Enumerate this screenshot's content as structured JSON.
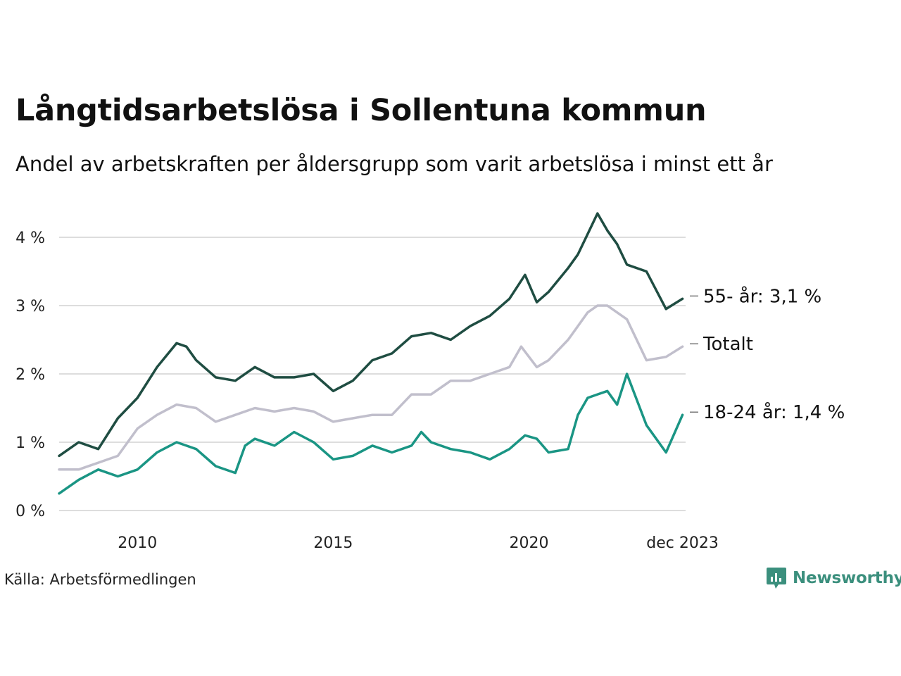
{
  "title": "Långtidsarbetslösa i Sollentuna kommun",
  "subtitle": "Andel av arbetskraften per åldersgrupp som varit arbetslösa i minst ett år",
  "source": "Källa: Arbetsförmedlingen",
  "brand": {
    "name": "Newsworthy",
    "icon": "newsworthy-logo-icon",
    "color": "#3b8f7d"
  },
  "chart_data": {
    "type": "line",
    "title": "Långtidsarbetslösa i Sollentuna kommun",
    "xlabel": "",
    "ylabel": "",
    "xlim": [
      2008.0,
      2024.0
    ],
    "ylim": [
      0,
      4.4
    ],
    "grid": true,
    "y_ticks": [
      0,
      1,
      2,
      3,
      4
    ],
    "y_tick_labels": [
      "0 %",
      "1 %",
      "2 %",
      "3 %",
      "4 %"
    ],
    "x_ticks": [
      2010,
      2015,
      2020,
      2023.92
    ],
    "x_tick_labels": [
      "2010",
      "2015",
      "2020",
      "dec 2023"
    ],
    "series": [
      {
        "name": "55- år",
        "label": "55- år: 3,1 %",
        "color": "#1f4d42",
        "x": [
          2008.0,
          2008.5,
          2009.0,
          2009.5,
          2010.0,
          2010.5,
          2011.0,
          2011.25,
          2011.5,
          2012.0,
          2012.5,
          2013.0,
          2013.5,
          2014.0,
          2014.5,
          2015.0,
          2015.5,
          2016.0,
          2016.5,
          2017.0,
          2017.5,
          2018.0,
          2018.5,
          2019.0,
          2019.5,
          2019.9,
          2020.2,
          2020.5,
          2021.0,
          2021.25,
          2021.5,
          2021.75,
          2022.0,
          2022.25,
          2022.5,
          2023.0,
          2023.5,
          2023.92
        ],
        "values": [
          0.8,
          1.0,
          0.9,
          1.35,
          1.65,
          2.1,
          2.45,
          2.4,
          2.2,
          1.95,
          1.9,
          2.1,
          1.95,
          1.95,
          2.0,
          1.75,
          1.9,
          2.2,
          2.3,
          2.55,
          2.6,
          2.5,
          2.7,
          2.85,
          3.1,
          3.45,
          3.05,
          3.2,
          3.55,
          3.75,
          4.05,
          4.35,
          4.1,
          3.9,
          3.6,
          3.5,
          2.95,
          3.1
        ]
      },
      {
        "name": "Totalt",
        "label": "Totalt",
        "color": "#c1bfcc",
        "x": [
          2008.0,
          2008.5,
          2009.0,
          2009.5,
          2010.0,
          2010.5,
          2011.0,
          2011.5,
          2012.0,
          2012.5,
          2013.0,
          2013.5,
          2014.0,
          2014.5,
          2015.0,
          2015.5,
          2016.0,
          2016.5,
          2017.0,
          2017.5,
          2018.0,
          2018.5,
          2019.0,
          2019.5,
          2019.8,
          2020.2,
          2020.5,
          2021.0,
          2021.25,
          2021.5,
          2021.75,
          2022.0,
          2022.5,
          2023.0,
          2023.5,
          2023.92
        ],
        "values": [
          0.6,
          0.6,
          0.7,
          0.8,
          1.2,
          1.4,
          1.55,
          1.5,
          1.3,
          1.4,
          1.5,
          1.45,
          1.5,
          1.45,
          1.3,
          1.35,
          1.4,
          1.4,
          1.7,
          1.7,
          1.9,
          1.9,
          2.0,
          2.1,
          2.4,
          2.1,
          2.2,
          2.5,
          2.7,
          2.9,
          3.0,
          3.0,
          2.8,
          2.2,
          2.25,
          2.4
        ]
      },
      {
        "name": "18-24 år",
        "label": "18-24 år: 1,4 %",
        "color": "#1a9584",
        "x": [
          2008.0,
          2008.5,
          2009.0,
          2009.5,
          2010.0,
          2010.5,
          2011.0,
          2011.5,
          2012.0,
          2012.5,
          2012.75,
          2013.0,
          2013.5,
          2014.0,
          2014.5,
          2015.0,
          2015.5,
          2016.0,
          2016.5,
          2017.0,
          2017.25,
          2017.5,
          2018.0,
          2018.5,
          2019.0,
          2019.5,
          2019.9,
          2020.2,
          2020.5,
          2021.0,
          2021.25,
          2021.5,
          2021.75,
          2022.0,
          2022.25,
          2022.5,
          2023.0,
          2023.5,
          2023.92
        ],
        "values": [
          0.25,
          0.45,
          0.6,
          0.5,
          0.6,
          0.85,
          1.0,
          0.9,
          0.65,
          0.55,
          0.95,
          1.05,
          0.95,
          1.15,
          1.0,
          0.75,
          0.8,
          0.95,
          0.85,
          0.95,
          1.15,
          1.0,
          0.9,
          0.85,
          0.75,
          0.9,
          1.1,
          1.05,
          0.85,
          0.9,
          1.4,
          1.65,
          1.7,
          1.75,
          1.55,
          2.0,
          1.25,
          0.85,
          1.4
        ]
      }
    ]
  }
}
